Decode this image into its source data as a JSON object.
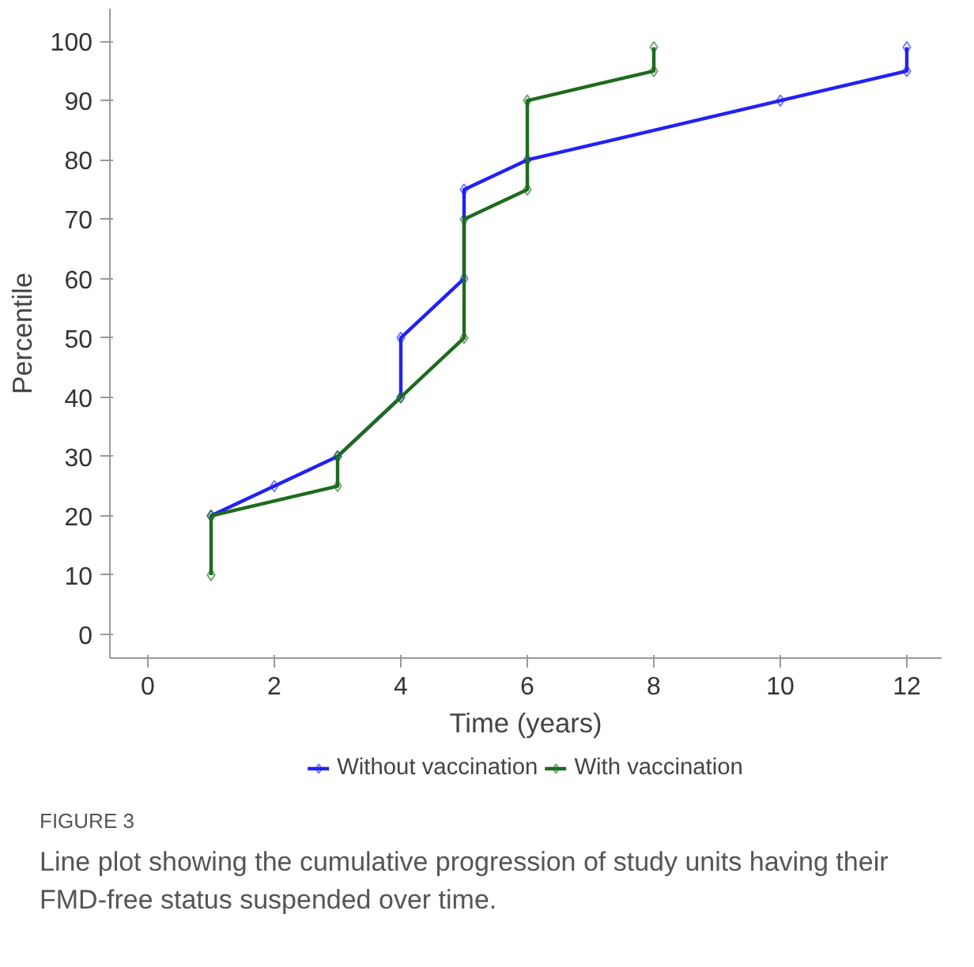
{
  "chart_data": {
    "type": "line",
    "xlabel": "Time (years)",
    "ylabel": "Percentile",
    "xlim": [
      -0.6,
      12.55
    ],
    "ylim": [
      -4,
      105.5
    ],
    "xticks": [
      0,
      2,
      4,
      6,
      8,
      10,
      12
    ],
    "yticks": [
      0,
      10,
      20,
      30,
      40,
      50,
      60,
      70,
      80,
      90,
      100
    ],
    "grid": false,
    "legend": "bottom",
    "marker": "diamond",
    "line_style": "solid",
    "series": [
      {
        "name": "Without vaccination",
        "color": "#2121f5",
        "x": [
          1,
          2,
          3,
          4,
          4,
          5,
          5,
          6,
          10,
          12,
          12
        ],
        "values": [
          20,
          25,
          30,
          40,
          50,
          60,
          75,
          80,
          90,
          95,
          99
        ]
      },
      {
        "name": "With vaccination",
        "color": "#1e6b1e",
        "x": [
          1,
          1,
          3,
          3,
          4,
          5,
          5,
          6,
          6,
          8,
          8
        ],
        "values": [
          10,
          20,
          25,
          30,
          40,
          50,
          70,
          75,
          90,
          95,
          99
        ]
      }
    ],
    "annotations": [
      "FIGURE 3",
      "Line plot showing the cumulative progression of study units having their FMD-free status suspended over time."
    ]
  }
}
